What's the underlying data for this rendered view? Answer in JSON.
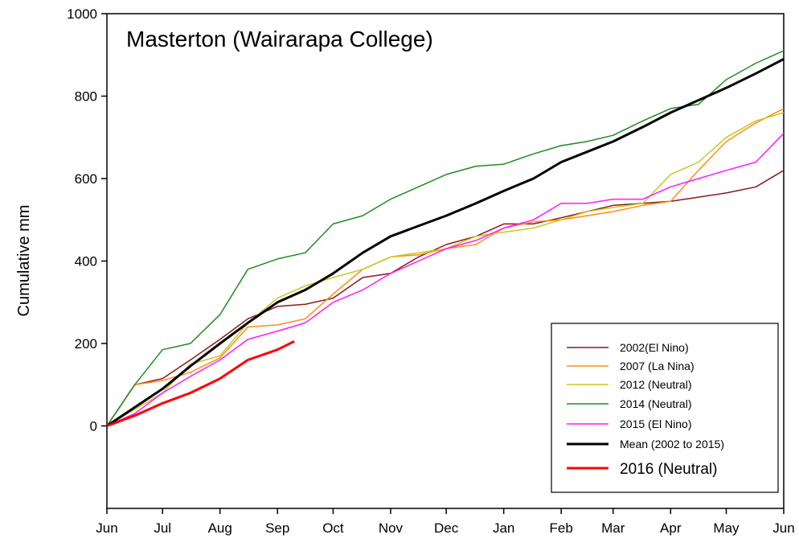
{
  "chart_data": {
    "type": "line",
    "title": "Masterton (Wairarapa College)",
    "ylabel": "Cumulative mm",
    "x": [
      0,
      15,
      30,
      45,
      61,
      76,
      92,
      107,
      122,
      138,
      153,
      168,
      183,
      199,
      214,
      230,
      245,
      259,
      273,
      289,
      304,
      319,
      334,
      350,
      365
    ],
    "xlim": [
      0,
      365
    ],
    "xticks": [
      {
        "value": 0,
        "label": "Jun"
      },
      {
        "value": 30,
        "label": "Jul"
      },
      {
        "value": 61,
        "label": "Aug"
      },
      {
        "value": 92,
        "label": "Sep"
      },
      {
        "value": 122,
        "label": "Oct"
      },
      {
        "value": 153,
        "label": "Nov"
      },
      {
        "value": 183,
        "label": "Dec"
      },
      {
        "value": 214,
        "label": "Jan"
      },
      {
        "value": 245,
        "label": "Feb"
      },
      {
        "value": 273,
        "label": "Mar"
      },
      {
        "value": 304,
        "label": "Apr"
      },
      {
        "value": 334,
        "label": "May"
      },
      {
        "value": 365,
        "label": "Jun"
      }
    ],
    "ylim": [
      -200,
      1000
    ],
    "yticks": [
      0,
      200,
      400,
      600,
      800,
      1000
    ],
    "legend": "lower right",
    "series": [
      {
        "name": "2002(El Nino)",
        "color": "#8b1a1a",
        "values": [
          0,
          100,
          115,
          160,
          210,
          260,
          290,
          295,
          310,
          360,
          370,
          410,
          440,
          460,
          490,
          490,
          505,
          520,
          535,
          540,
          545,
          555,
          565,
          580,
          620
        ]
      },
      {
        "name": "2007 (La Nina)",
        "color": "#ff8c1a",
        "values": [
          0,
          100,
          110,
          130,
          165,
          240,
          245,
          260,
          320,
          380,
          410,
          415,
          430,
          440,
          480,
          495,
          500,
          510,
          520,
          535,
          545,
          620,
          690,
          735,
          770
        ]
      },
      {
        "name": "2012 (Neutral)",
        "color": "#c8c81e",
        "values": [
          0,
          40,
          80,
          150,
          170,
          250,
          310,
          340,
          360,
          380,
          410,
          420,
          430,
          460,
          470,
          480,
          500,
          520,
          530,
          540,
          610,
          640,
          700,
          740,
          760
        ]
      },
      {
        "name": "2014 (Neutral)",
        "color": "#1e8c1e",
        "values": [
          0,
          100,
          185,
          200,
          270,
          380,
          405,
          420,
          490,
          510,
          550,
          580,
          610,
          630,
          635,
          660,
          680,
          690,
          705,
          740,
          770,
          780,
          840,
          880,
          910
        ]
      },
      {
        "name": "2015 (El Nino)",
        "color": "#ff1aff",
        "values": [
          0,
          30,
          80,
          120,
          160,
          210,
          230,
          250,
          300,
          330,
          370,
          400,
          430,
          450,
          480,
          500,
          540,
          540,
          550,
          550,
          580,
          600,
          620,
          640,
          710
        ]
      },
      {
        "name": "Mean (2002 to 2015)",
        "color": "#000000",
        "values": [
          0,
          45,
          90,
          145,
          200,
          250,
          300,
          330,
          370,
          420,
          460,
          485,
          510,
          540,
          570,
          600,
          640,
          665,
          690,
          725,
          760,
          790,
          820,
          855,
          890
        ]
      },
      {
        "name": "2016 (Neutral)",
        "color": "#ff0000",
        "x": [
          0,
          15,
          30,
          45,
          61,
          76,
          92,
          101
        ],
        "values": [
          0,
          25,
          55,
          80,
          115,
          160,
          185,
          205
        ]
      }
    ]
  }
}
